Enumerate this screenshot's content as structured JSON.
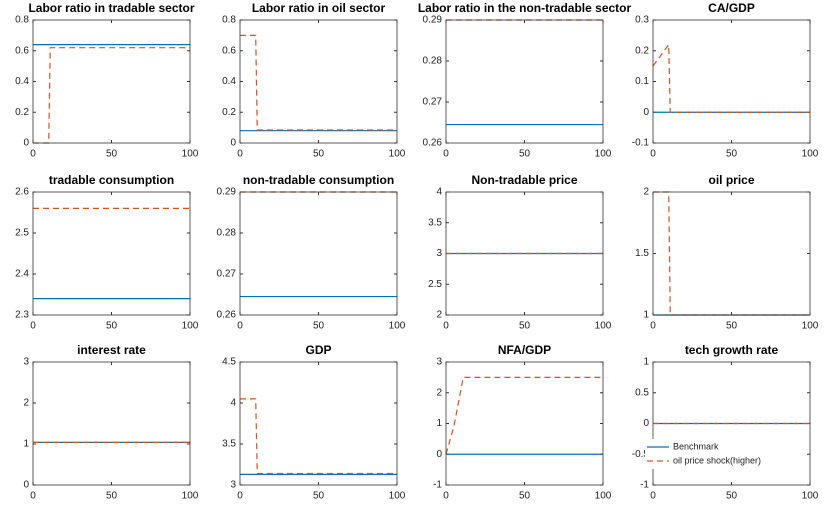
{
  "chart_data": [
    {
      "type": "line",
      "title": "Labor ratio in tradable sector",
      "x": [
        0,
        10,
        11,
        100
      ],
      "xlim": [
        0,
        100
      ],
      "xticks": [
        0,
        50,
        100
      ],
      "ylim": [
        0,
        0.8
      ],
      "yticks": [
        0,
        0.2,
        0.4,
        0.6,
        0.8
      ],
      "series": [
        {
          "name": "Benchmark",
          "color": "#0072bd",
          "values": [
            0.64,
            0.64,
            0.64,
            0.64
          ]
        },
        {
          "name": "oil price shock(higher)",
          "color": "#d95319",
          "values": [
            0,
            0,
            0.62,
            0.62
          ]
        }
      ]
    },
    {
      "type": "line",
      "title": "Labor ratio in oil sector",
      "x": [
        0,
        10,
        11,
        100
      ],
      "xlim": [
        0,
        100
      ],
      "xticks": [
        0,
        50,
        100
      ],
      "ylim": [
        0,
        0.8
      ],
      "yticks": [
        0,
        0.2,
        0.4,
        0.6,
        0.8
      ],
      "series": [
        {
          "name": "Benchmark",
          "color": "#0072bd",
          "values": [
            0.08,
            0.08,
            0.08,
            0.08
          ]
        },
        {
          "name": "oil price shock(higher)",
          "color": "#d95319",
          "values": [
            0.7,
            0.7,
            0.085,
            0.085
          ]
        }
      ]
    },
    {
      "type": "line",
      "title": "Labor ratio in the non-tradable sector",
      "x": [
        0,
        10,
        11,
        100
      ],
      "xlim": [
        0,
        100
      ],
      "xticks": [
        0,
        50,
        100
      ],
      "ylim": [
        0.26,
        0.29
      ],
      "yticks": [
        0.26,
        0.27,
        0.28,
        0.29
      ],
      "series": [
        {
          "name": "Benchmark",
          "color": "#0072bd",
          "values": [
            0.2645,
            0.2645,
            0.2645,
            0.2645
          ]
        },
        {
          "name": "oil price shock(higher)",
          "color": "#d95319",
          "values": [
            0.29,
            0.29,
            0.29,
            0.29
          ]
        }
      ]
    },
    {
      "type": "line",
      "title": "CA/GDP",
      "x": [
        0,
        10,
        11,
        100
      ],
      "xlim": [
        0,
        100
      ],
      "xticks": [
        0,
        50,
        100
      ],
      "ylim": [
        -0.1,
        0.3
      ],
      "yticks": [
        -0.1,
        0,
        0.1,
        0.2,
        0.3
      ],
      "series": [
        {
          "name": "Benchmark",
          "color": "#0072bd",
          "values": [
            0,
            0,
            0,
            0
          ]
        },
        {
          "name": "oil price shock(higher)",
          "color": "#d95319",
          "values": [
            0.15,
            0.22,
            0,
            0
          ]
        }
      ]
    },
    {
      "type": "line",
      "title": "tradable consumption",
      "x": [
        0,
        10,
        11,
        100
      ],
      "xlim": [
        0,
        100
      ],
      "xticks": [
        0,
        50,
        100
      ],
      "ylim": [
        2.3,
        2.6
      ],
      "yticks": [
        2.3,
        2.4,
        2.5,
        2.6
      ],
      "series": [
        {
          "name": "Benchmark",
          "color": "#0072bd",
          "values": [
            2.34,
            2.34,
            2.34,
            2.34
          ]
        },
        {
          "name": "oil price shock(higher)",
          "color": "#d95319",
          "values": [
            2.56,
            2.56,
            2.56,
            2.56
          ]
        }
      ]
    },
    {
      "type": "line",
      "title": "non-tradable consumption",
      "x": [
        0,
        10,
        11,
        100
      ],
      "xlim": [
        0,
        100
      ],
      "xticks": [
        0,
        50,
        100
      ],
      "ylim": [
        0.26,
        0.29
      ],
      "yticks": [
        0.26,
        0.27,
        0.28,
        0.29
      ],
      "series": [
        {
          "name": "Benchmark",
          "color": "#0072bd",
          "values": [
            0.2645,
            0.2645,
            0.2645,
            0.2645
          ]
        },
        {
          "name": "oil price shock(higher)",
          "color": "#d95319",
          "values": [
            0.29,
            0.29,
            0.29,
            0.29
          ]
        }
      ]
    },
    {
      "type": "line",
      "title": "Non-tradable price",
      "x": [
        0,
        10,
        11,
        100
      ],
      "xlim": [
        0,
        100
      ],
      "xticks": [
        0,
        50,
        100
      ],
      "ylim": [
        2,
        4
      ],
      "yticks": [
        2,
        2.5,
        3,
        3.5,
        4
      ],
      "series": [
        {
          "name": "Benchmark",
          "color": "#0072bd",
          "values": [
            3,
            3,
            3,
            3
          ]
        },
        {
          "name": "oil price shock(higher)",
          "color": "#d95319",
          "values": [
            3,
            3,
            3,
            3
          ]
        }
      ]
    },
    {
      "type": "line",
      "title": "oil price",
      "x": [
        0,
        10,
        11,
        100
      ],
      "xlim": [
        0,
        100
      ],
      "xticks": [
        0,
        50,
        100
      ],
      "ylim": [
        1,
        2
      ],
      "yticks": [
        1,
        1.5,
        2
      ],
      "series": [
        {
          "name": "Benchmark",
          "color": "#0072bd",
          "values": [
            1,
            1,
            1,
            1
          ]
        },
        {
          "name": "oil price shock(higher)",
          "color": "#d95319",
          "values": [
            2,
            2,
            1,
            1
          ]
        }
      ]
    },
    {
      "type": "line",
      "title": "interest rate",
      "x": [
        0,
        10,
        11,
        100
      ],
      "xlim": [
        0,
        100
      ],
      "xticks": [
        0,
        50,
        100
      ],
      "ylim": [
        0,
        3
      ],
      "yticks": [
        0,
        1,
        2,
        3
      ],
      "series": [
        {
          "name": "Benchmark",
          "color": "#0072bd",
          "values": [
            1.04,
            1.04,
            1.04,
            1.04
          ]
        },
        {
          "name": "oil price shock(higher)",
          "color": "#d95319",
          "values": [
            1.04,
            1.04,
            1.04,
            1.04
          ]
        }
      ]
    },
    {
      "type": "line",
      "title": "GDP",
      "x": [
        0,
        10,
        11,
        100
      ],
      "xlim": [
        0,
        100
      ],
      "xticks": [
        0,
        50,
        100
      ],
      "ylim": [
        3,
        4.5
      ],
      "yticks": [
        3,
        3.5,
        4,
        4.5
      ],
      "series": [
        {
          "name": "Benchmark",
          "color": "#0072bd",
          "values": [
            3.13,
            3.13,
            3.13,
            3.13
          ]
        },
        {
          "name": "oil price shock(higher)",
          "color": "#d95319",
          "values": [
            4.05,
            4.05,
            3.14,
            3.14
          ]
        }
      ]
    },
    {
      "type": "line",
      "title": "NFA/GDP",
      "x": [
        0,
        5,
        11,
        100
      ],
      "xlim": [
        0,
        100
      ],
      "xticks": [
        0,
        50,
        100
      ],
      "ylim": [
        -1,
        3
      ],
      "yticks": [
        -1,
        0,
        1,
        2,
        3
      ],
      "series": [
        {
          "name": "Benchmark",
          "color": "#0072bd",
          "values": [
            0,
            0,
            0,
            0
          ]
        },
        {
          "name": "oil price shock(higher)",
          "color": "#d95319",
          "values": [
            0,
            0.9,
            2.5,
            2.5
          ]
        }
      ]
    },
    {
      "type": "line",
      "title": "tech growth rate",
      "x": [
        0,
        10,
        11,
        100
      ],
      "xlim": [
        0,
        100
      ],
      "xticks": [
        0,
        50,
        100
      ],
      "ylim": [
        -1,
        1
      ],
      "yticks": [
        -1,
        -0.5,
        0,
        0.5,
        1
      ],
      "legend": "lower left",
      "series": [
        {
          "name": "Benchmark",
          "color": "#0072bd",
          "values": [
            0,
            0,
            0,
            0
          ]
        },
        {
          "name": "oil price shock(higher)",
          "color": "#d95319",
          "values": [
            0,
            0,
            0,
            0
          ]
        }
      ]
    }
  ]
}
